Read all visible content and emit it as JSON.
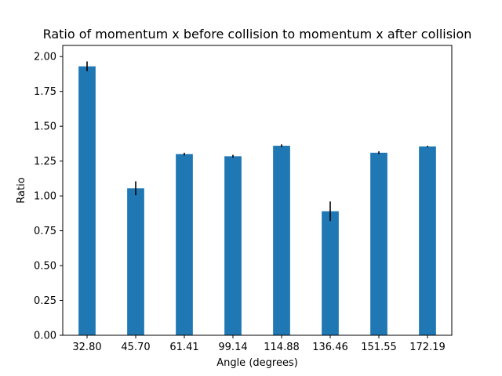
{
  "chart_data": {
    "type": "bar",
    "title": "Ratio of momentum x before collision to momentum x after collision",
    "xlabel": "Angle (degrees)",
    "ylabel": "Ratio",
    "categories": [
      "32.80",
      "45.70",
      "61.41",
      "99.14",
      "114.88",
      "136.46",
      "151.55",
      "172.19"
    ],
    "values": [
      1.93,
      1.055,
      1.3,
      1.285,
      1.36,
      0.89,
      1.31,
      1.355
    ],
    "errors": [
      0.035,
      0.05,
      0.01,
      0.01,
      0.01,
      0.07,
      0.01,
      0.005
    ],
    "ylim": [
      0,
      2.08
    ],
    "yticks": [
      "0.00",
      "0.25",
      "0.50",
      "0.75",
      "1.00",
      "1.25",
      "1.50",
      "1.75",
      "2.00"
    ],
    "grid": false,
    "bar_color": "#1f77b4",
    "error_color": "#000000"
  }
}
